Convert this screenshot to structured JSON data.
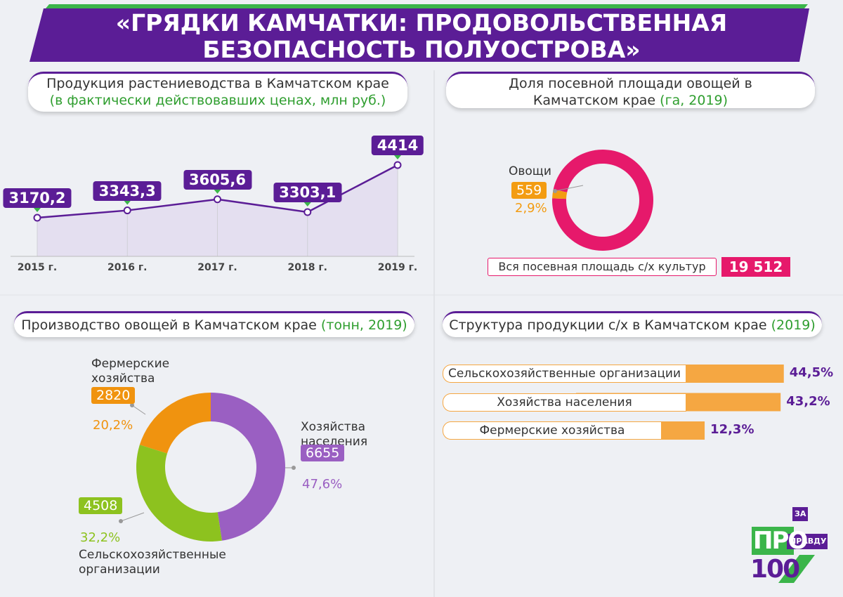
{
  "title": "«ГРЯДКИ КАМЧАТКИ: ПРОДОВОЛЬСТВЕННАЯ БЕЗОПАСНОСТЬ ПОЛУОСТРОВА»",
  "logo": {
    "pro": "ПРО",
    "za": "ЗА",
    "pravdu": "ПРАВДУ",
    "sto": "100"
  },
  "chart_data": [
    {
      "type": "line",
      "title": "Продукция растениеводства в Камчатском крае",
      "subtitle": "(в фактически действовавших ценах, млн руб.)",
      "categories": [
        "2015 г.",
        "2016 г.",
        "2017 г.",
        "2018 г.",
        "2019 г."
      ],
      "values": [
        3170.2,
        3343.3,
        3605.6,
        3303.1,
        4414
      ],
      "value_labels": [
        "3170,2",
        "3343,3",
        "3605,6",
        "3303,1",
        "4414"
      ],
      "color": "#5b1d96"
    },
    {
      "type": "donut-share",
      "title": "Доля посевной площади овощей в Камчатском крае",
      "subtitle": "(га, 2019)",
      "categories": [
        "Овощи"
      ],
      "values": [
        559
      ],
      "value_labels": [
        "559"
      ],
      "percents": [
        2.9
      ],
      "percent_labels": [
        "2,9%"
      ],
      "color": "#f39c12",
      "total_name": "Вся посевная площадь с/х культур",
      "total": 19512,
      "total_label": "19 512",
      "total_color": "#e6196b"
    },
    {
      "type": "donut",
      "title": "Производство овощей в Камчатском крае",
      "subtitle": "(тонн, 2019)",
      "categories": [
        "Фермерские хозяйства",
        "Хозяйства населения",
        "Сельскохозяйственные организации"
      ],
      "values": [
        2820,
        6655,
        4508
      ],
      "percents": [
        20.2,
        47.6,
        32.2
      ],
      "percent_labels": [
        "20,2%",
        "47,6%",
        "32,2%"
      ],
      "colors": [
        "#f0930f",
        "#9a5fc2",
        "#8dc21f"
      ]
    },
    {
      "type": "hbar",
      "title": "Структура продукции с/х в Камчатском крае",
      "subtitle": "(2019)",
      "categories": [
        "Сельскохозяйственные организации",
        "Хозяйства населения",
        "Фермерские хозяйства"
      ],
      "values": [
        44.5,
        43.2,
        12.3
      ],
      "value_labels": [
        "44,5%",
        "43,2%",
        "12,3%"
      ],
      "color": "#f5a742"
    }
  ]
}
